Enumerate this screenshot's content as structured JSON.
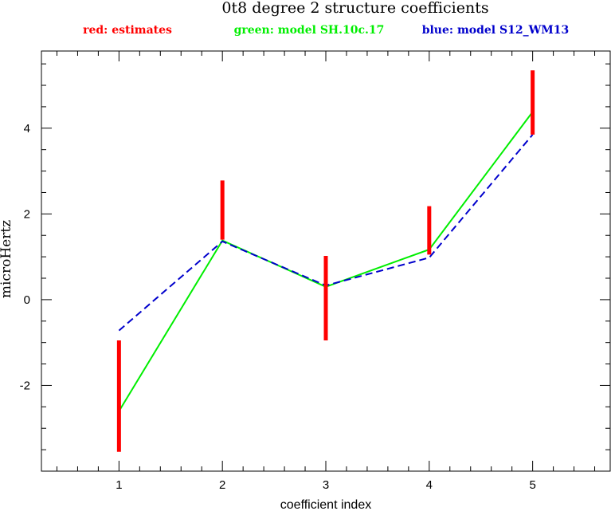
{
  "chart_data": {
    "type": "line",
    "title": "0t8 degree 2 structure coefficients",
    "xlabel": "coefficient index",
    "ylabel": "microHertz",
    "xlim": [
      0.25,
      5.75
    ],
    "ylim": [
      -4.0,
      5.8
    ],
    "x_ticks": [
      1,
      2,
      3,
      4,
      5
    ],
    "y_ticks": [
      -2,
      0,
      2,
      4
    ],
    "x_minor_step": 0.2,
    "y_minor_step": 0.5,
    "legend": [
      {
        "label": "red: estimates",
        "color": "#ff0000"
      },
      {
        "label": "green: model SH.10c.17",
        "color": "#00ee00"
      },
      {
        "label": "blue: model S12_WM13",
        "color": "#0000cc"
      }
    ],
    "estimates": {
      "color": "#ff0000",
      "x": [
        1,
        2,
        3,
        4,
        5
      ],
      "low": [
        -3.55,
        1.4,
        -0.95,
        1.05,
        3.85
      ],
      "high": [
        -0.95,
        2.78,
        1.02,
        2.18,
        5.35
      ]
    },
    "series": [
      {
        "name": "model SH.10c.17",
        "color": "#00ee00",
        "style": "solid",
        "x": [
          1,
          2,
          3,
          4,
          5
        ],
        "values": [
          -2.6,
          1.38,
          0.3,
          1.17,
          4.38
        ]
      },
      {
        "name": "model S12_WM13",
        "color": "#0000cc",
        "style": "dashed",
        "x": [
          1,
          2,
          3,
          4,
          5
        ],
        "values": [
          -0.72,
          1.36,
          0.33,
          0.98,
          3.85
        ]
      }
    ]
  }
}
